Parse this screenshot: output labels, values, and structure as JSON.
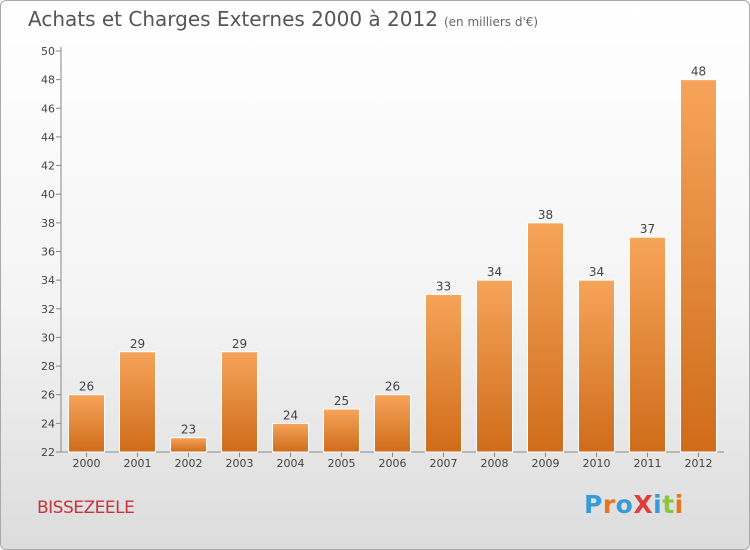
{
  "title": "Achats et Charges Externes 2000 à 2012",
  "subtitle": "(en milliers d'€)",
  "commune": "BISSEZEELE",
  "logo": {
    "text": "ProXiti",
    "colors": [
      "#3a9ad9",
      "#e8751a",
      "#3a9ad9",
      "#e03c3c",
      "#3a9ad9",
      "#8cc63f",
      "#e8751a"
    ]
  },
  "colors": {
    "bar_top": "#f6a45a",
    "bar_bottom": "#cf6c1a",
    "commune": "#c8323c"
  },
  "chart_data": {
    "type": "bar",
    "title": "Achats et Charges Externes 2000 à 2012",
    "subtitle": "(en milliers d'€)",
    "categories": [
      "2000",
      "2001",
      "2002",
      "2003",
      "2004",
      "2005",
      "2006",
      "2007",
      "2008",
      "2009",
      "2010",
      "2011",
      "2012"
    ],
    "values": [
      26,
      29,
      23,
      29,
      24,
      25,
      26,
      33,
      34,
      38,
      34,
      37,
      48
    ],
    "ylim": [
      22,
      50
    ],
    "yticks": [
      22,
      24,
      26,
      28,
      30,
      32,
      34,
      36,
      38,
      40,
      42,
      44,
      46,
      48,
      50
    ],
    "grid": false,
    "data_labels": true
  }
}
